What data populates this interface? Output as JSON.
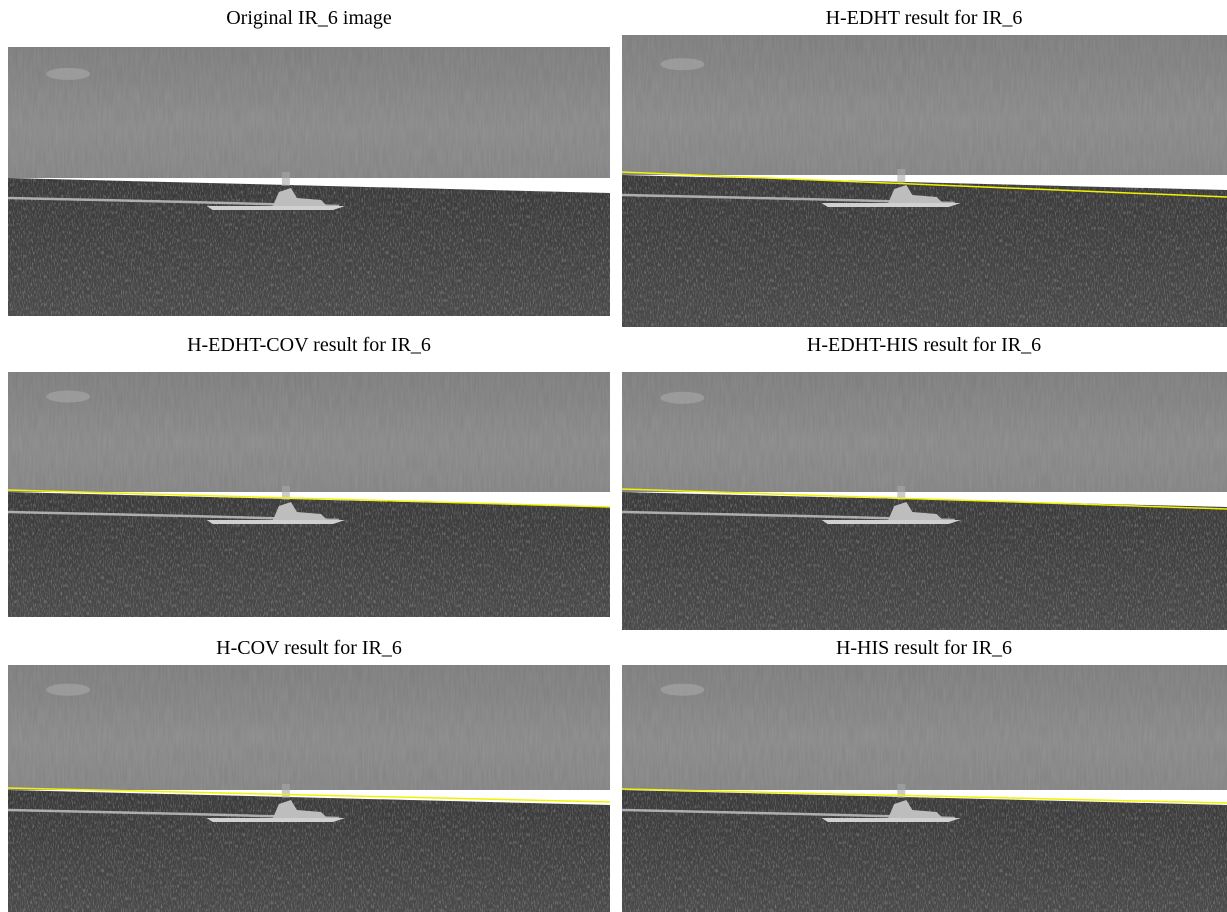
{
  "panels": [
    {
      "title": "Original IR_6 image"
    },
    {
      "title": "H-EDHT result for IR_6"
    },
    {
      "title": "H-EDHT-COV result for IR_6"
    },
    {
      "title": "H-EDHT-HIS result for IR_6"
    },
    {
      "title": "H-COV result for IR_6"
    },
    {
      "title": "H-HIS result for IR_6"
    }
  ]
}
